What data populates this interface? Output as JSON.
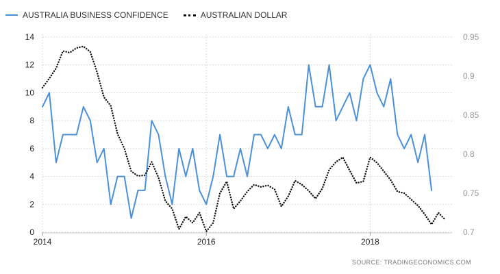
{
  "legend": {
    "series1": "AUSTRALIA BUSINESS CONFIDENCE",
    "series2": "AUSTRALIAN DOLLAR"
  },
  "source": "SOURCE:  TRADINGECONOMICS.COM",
  "colors": {
    "series1": "#4a90d9",
    "series2": "#111111",
    "grid": "#d9d9d9",
    "right_axis_text": "#999999",
    "left_axis_text": "#222222"
  },
  "chart_data": {
    "type": "line",
    "title": "",
    "grid": true,
    "legend_position": "top-left",
    "x_ticks": [
      "2014",
      "2016",
      "2018"
    ],
    "x_range": [
      "2014-01",
      "2019-01"
    ],
    "left_axis": {
      "range": [
        0,
        14
      ],
      "ticks": [
        "0",
        "2",
        "4",
        "6",
        "8",
        "10",
        "12",
        "14"
      ]
    },
    "right_axis": {
      "range": [
        0.7,
        0.95
      ],
      "ticks": [
        "0.7",
        "0.75",
        "0.8",
        "0.85",
        "0.9",
        "0.95"
      ]
    },
    "series": [
      {
        "name": "AUSTRALIA BUSINESS CONFIDENCE",
        "axis": "left",
        "style": "solid",
        "x": [
          "2014-01",
          "2014-02",
          "2014-03",
          "2014-04",
          "2014-05",
          "2014-06",
          "2014-07",
          "2014-08",
          "2014-09",
          "2014-10",
          "2014-11",
          "2014-12",
          "2015-01",
          "2015-02",
          "2015-03",
          "2015-04",
          "2015-05",
          "2015-06",
          "2015-07",
          "2015-08",
          "2015-09",
          "2015-10",
          "2015-11",
          "2015-12",
          "2016-01",
          "2016-02",
          "2016-03",
          "2016-04",
          "2016-05",
          "2016-06",
          "2016-07",
          "2016-08",
          "2016-09",
          "2016-10",
          "2016-11",
          "2016-12",
          "2017-01",
          "2017-02",
          "2017-03",
          "2017-04",
          "2017-05",
          "2017-06",
          "2017-07",
          "2017-08",
          "2017-09",
          "2017-10",
          "2017-11",
          "2017-12",
          "2018-01",
          "2018-02",
          "2018-03",
          "2018-04",
          "2018-05",
          "2018-06",
          "2018-07",
          "2018-08",
          "2018-09",
          "2018-10"
        ],
        "values": [
          9,
          10,
          5,
          7,
          7,
          7,
          9,
          8,
          5,
          6,
          2,
          4,
          4,
          1,
          3,
          3,
          8,
          7,
          4,
          2,
          6,
          4,
          6,
          3,
          2,
          4,
          7,
          4,
          4,
          6,
          4,
          7,
          7,
          6,
          7,
          6,
          9,
          7,
          7,
          12,
          9,
          9,
          12,
          8,
          9,
          10,
          8,
          11,
          12,
          10,
          9,
          11,
          7,
          6,
          7,
          5,
          7,
          3
        ]
      },
      {
        "name": "AUSTRALIAN DOLLAR",
        "axis": "right",
        "style": "dotted",
        "x": [
          "2014-01",
          "2014-02",
          "2014-03",
          "2014-04",
          "2014-05",
          "2014-06",
          "2014-07",
          "2014-08",
          "2014-09",
          "2014-10",
          "2014-11",
          "2014-12",
          "2015-01",
          "2015-02",
          "2015-03",
          "2015-04",
          "2015-05",
          "2015-06",
          "2015-07",
          "2015-08",
          "2015-09",
          "2015-10",
          "2015-11",
          "2015-12",
          "2016-01",
          "2016-02",
          "2016-03",
          "2016-04",
          "2016-05",
          "2016-06",
          "2016-07",
          "2016-08",
          "2016-09",
          "2016-10",
          "2016-11",
          "2016-12",
          "2017-01",
          "2017-02",
          "2017-03",
          "2017-04",
          "2017-05",
          "2017-06",
          "2017-07",
          "2017-08",
          "2017-09",
          "2017-10",
          "2017-11",
          "2017-12",
          "2018-01",
          "2018-02",
          "2018-03",
          "2018-04",
          "2018-05",
          "2018-06",
          "2018-07",
          "2018-08",
          "2018-09",
          "2018-10",
          "2018-11",
          "2018-12"
        ],
        "values": [
          0.885,
          0.897,
          0.91,
          0.932,
          0.93,
          0.936,
          0.938,
          0.931,
          0.905,
          0.873,
          0.862,
          0.826,
          0.807,
          0.778,
          0.772,
          0.773,
          0.79,
          0.77,
          0.74,
          0.73,
          0.704,
          0.72,
          0.712,
          0.725,
          0.701,
          0.712,
          0.75,
          0.765,
          0.73,
          0.74,
          0.752,
          0.761,
          0.758,
          0.76,
          0.755,
          0.733,
          0.746,
          0.766,
          0.761,
          0.753,
          0.743,
          0.756,
          0.78,
          0.79,
          0.796,
          0.779,
          0.763,
          0.765,
          0.796,
          0.789,
          0.778,
          0.767,
          0.752,
          0.75,
          0.742,
          0.734,
          0.723,
          0.71,
          0.725,
          0.716
        ]
      }
    ]
  }
}
